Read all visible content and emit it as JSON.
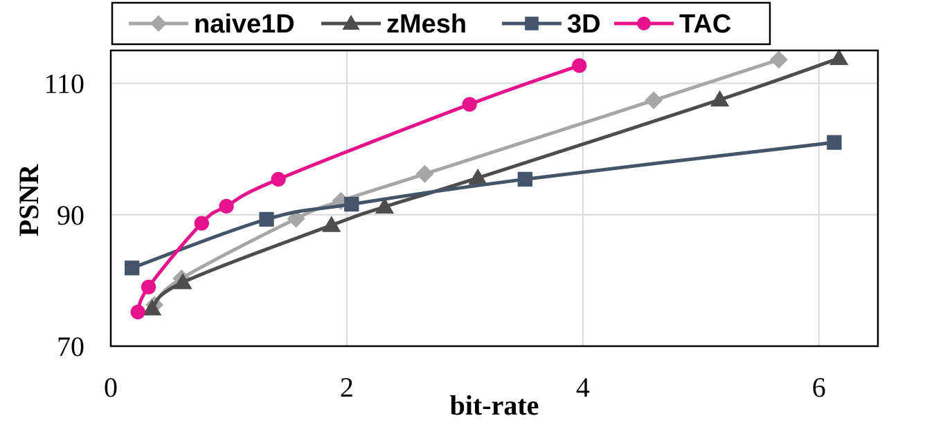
{
  "chart_data": {
    "type": "line",
    "title": "",
    "xlabel": "bit-rate",
    "ylabel": "PSNR",
    "xlim": [
      0,
      6.5
    ],
    "ylim": [
      70,
      115
    ],
    "xticks": [
      0,
      2,
      4,
      6
    ],
    "xtick_labels": [
      "0",
      "2",
      "4",
      "6"
    ],
    "yticks": [
      70,
      90,
      110
    ],
    "ytick_labels": [
      "70",
      "90",
      "110"
    ],
    "grid": true,
    "legend_position": "top",
    "series": [
      {
        "name": "naive1D",
        "color": "#a6a6a6",
        "marker": "diamond",
        "x": [
          0.37,
          0.6,
          1.57,
          1.95,
          2.66,
          4.6,
          5.66
        ],
        "y": [
          76.3,
          80.3,
          89.4,
          92.1,
          96.2,
          107.4,
          113.6
        ]
      },
      {
        "name": "zMesh",
        "color": "#4d4d4d",
        "marker": "triangle",
        "x": [
          0.35,
          0.61,
          1.87,
          2.32,
          3.11,
          5.16,
          6.17
        ],
        "y": [
          75.7,
          79.7,
          88.4,
          91.2,
          95.6,
          107.5,
          113.8
        ]
      },
      {
        "name": "3D",
        "color": "#44546a",
        "marker": "square",
        "x": [
          0.18,
          1.32,
          2.04,
          3.51,
          6.13
        ],
        "y": [
          81.9,
          89.3,
          91.6,
          95.4,
          101.0
        ]
      },
      {
        "name": "TAC",
        "color": "#e6128c",
        "marker": "circle",
        "x": [
          0.23,
          0.32,
          0.77,
          0.98,
          1.42,
          3.04,
          3.97
        ],
        "y": [
          75.2,
          79.0,
          88.7,
          91.3,
          95.4,
          106.8,
          112.7
        ]
      }
    ]
  }
}
